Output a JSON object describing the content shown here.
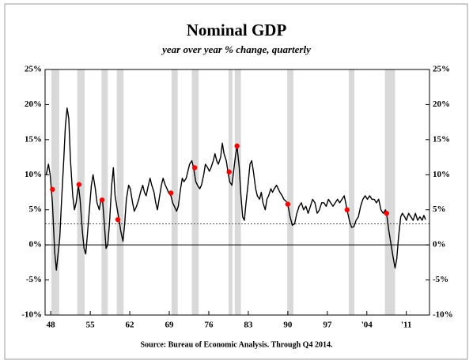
{
  "chart_data": {
    "type": "line",
    "title": "Nominal GDP",
    "subtitle": "year over year % change, quarterly",
    "source": "Source:  Bureau of Economic Analysis. Through Q4 2014.",
    "color": "#000000",
    "x": [
      1947.2,
      1947.6,
      1947.9,
      1948.3,
      1948.7,
      1949.0,
      1949.6,
      1949.9,
      1950.3,
      1950.6,
      1950.9,
      1951.2,
      1951.5,
      1951.9,
      1952.2,
      1952.5,
      1952.9,
      1953.2,
      1953.6,
      1953.9,
      1954.2,
      1954.5,
      1954.9,
      1955.2,
      1955.5,
      1955.9,
      1956.2,
      1956.6,
      1956.9,
      1957.2,
      1957.5,
      1957.8,
      1958.1,
      1958.4,
      1958.8,
      1959.1,
      1959.4,
      1959.8,
      1960.1,
      1960.4,
      1960.8,
      1961.1,
      1961.4,
      1961.8,
      1962.1,
      1962.5,
      1962.8,
      1963.2,
      1963.6,
      1963.9,
      1964.3,
      1964.6,
      1964.9,
      1965.3,
      1965.6,
      1965.9,
      1966.3,
      1966.6,
      1966.9,
      1967.2,
      1967.6,
      1967.9,
      1968.3,
      1968.6,
      1968.9,
      1969.3,
      1969.6,
      1969.9,
      1970.3,
      1970.6,
      1971.0,
      1971.3,
      1971.6,
      1972.0,
      1972.3,
      1972.6,
      1973.0,
      1973.3,
      1973.7,
      1974.0,
      1974.4,
      1974.7,
      1975.1,
      1975.4,
      1975.8,
      1976.1,
      1976.4,
      1976.8,
      1977.1,
      1977.4,
      1977.7,
      1978.1,
      1978.4,
      1978.7,
      1979.1,
      1979.4,
      1979.7,
      1980.1,
      1980.4,
      1980.7,
      1981.0,
      1981.4,
      1981.7,
      1982.0,
      1982.3,
      1982.6,
      1983.0,
      1983.3,
      1983.6,
      1983.9,
      1984.3,
      1984.6,
      1985.0,
      1985.3,
      1985.6,
      1986.0,
      1986.3,
      1986.6,
      1987.0,
      1987.3,
      1987.6,
      1988.0,
      1988.3,
      1988.6,
      1989.0,
      1989.3,
      1989.7,
      1990.0,
      1990.4,
      1990.8,
      1991.2,
      1991.6,
      1992.0,
      1992.4,
      1992.8,
      1993.2,
      1993.6,
      1994.0,
      1994.4,
      1994.8,
      1995.2,
      1995.6,
      1996.0,
      1996.4,
      1996.8,
      1997.2,
      1997.6,
      1998.0,
      1998.4,
      1998.8,
      1999.2,
      1999.6,
      2000.0,
      2000.5,
      2000.9,
      2001.3,
      2001.7,
      2002.1,
      2002.5,
      2002.9,
      2003.3,
      2003.7,
      2004.1,
      2004.5,
      2004.9,
      2005.3,
      2005.7,
      2006.1,
      2006.5,
      2006.9,
      2007.3,
      2007.5,
      2007.9,
      2008.3,
      2008.6,
      2009.0,
      2009.3,
      2009.6,
      2010.0,
      2010.3,
      2010.7,
      2011.0,
      2011.4,
      2011.8,
      2012.2,
      2012.6,
      2013.0,
      2013.4,
      2013.8,
      2014.1,
      2014.4
    ],
    "values": [
      10,
      11.5,
      10,
      6,
      -1,
      -3.6,
      1,
      6,
      12,
      17,
      19.5,
      18,
      12,
      7,
      5,
      6,
      8.5,
      6.5,
      2,
      -0.5,
      -1.3,
      1.5,
      5.5,
      8.5,
      10,
      8,
      6,
      5,
      6.5,
      6.2,
      3,
      -0.5,
      0,
      3,
      8.5,
      11,
      7,
      5,
      3.6,
      2,
      0.5,
      3,
      6.5,
      8.5,
      8,
      6,
      4.8,
      5.5,
      6.5,
      7.5,
      8.5,
      7.5,
      7,
      8.5,
      9.5,
      8.5,
      7.5,
      6,
      5,
      6.5,
      8.5,
      9.5,
      8.5,
      8,
      7.4,
      7,
      6,
      5.5,
      4.8,
      5.5,
      8,
      9.5,
      9,
      9.5,
      10.5,
      11.5,
      12,
      11,
      9,
      8.5,
      8,
      8.5,
      10,
      11.5,
      11,
      10.5,
      11,
      12,
      13,
      12,
      11.5,
      12.5,
      14.5,
      13,
      12,
      10.4,
      9,
      8.5,
      10.5,
      12.5,
      14.1,
      11,
      7,
      4,
      3.5,
      6,
      9,
      11.5,
      12,
      10.5,
      8,
      7,
      6.5,
      7.5,
      6,
      5,
      6.5,
      7,
      8,
      7.5,
      8,
      8.5,
      8,
      7.5,
      7,
      6.5,
      6.2,
      5.8,
      4,
      2.8,
      3,
      4.5,
      5.5,
      6,
      5,
      5.5,
      4.5,
      5.5,
      6.5,
      6,
      4.5,
      5,
      6,
      6,
      5.5,
      6.5,
      6,
      5.5,
      6,
      6.5,
      6,
      6.5,
      7,
      5,
      3.5,
      2.5,
      2.6,
      3.5,
      4,
      5.5,
      6.5,
      7,
      6.5,
      7,
      6.5,
      6.5,
      6,
      6.5,
      5,
      4.5,
      5,
      4.5,
      2,
      0,
      -1.5,
      -3.3,
      -2,
      1,
      4,
      4.5,
      4,
      3.5,
      4.5,
      4,
      3.5,
      4.5,
      3.5,
      4,
      3.5,
      4.2,
      3.6
    ],
    "markers": {
      "color": "#ff0000",
      "x": [
        1948.3,
        1953.0,
        1957.1,
        1959.9,
        1969.3,
        1973.5,
        1979.6,
        1981.0,
        1990.0,
        2000.5,
        2007.5
      ],
      "values": [
        7.9,
        8.6,
        6.4,
        3.6,
        7.4,
        11,
        10.4,
        14.1,
        5.8,
        5,
        4.5
      ]
    },
    "recessions": [
      [
        1948.1,
        1949.5
      ],
      [
        1952.7,
        1954.0
      ],
      [
        1957.0,
        1958.1
      ],
      [
        1959.7,
        1960.9
      ],
      [
        1969.4,
        1970.5
      ],
      [
        1973.0,
        1974.2
      ],
      [
        1979.5,
        1980.2
      ],
      [
        1980.6,
        1981.7
      ],
      [
        1989.9,
        1991.0
      ],
      [
        2000.8,
        2001.8
      ],
      [
        2007.2,
        2009.0
      ]
    ],
    "recession_color": "#d9d9d9",
    "reference_line": 3,
    "xlim": [
      1947,
      2015.1
    ],
    "xticks": [
      {
        "value": 1948,
        "label": "48"
      },
      {
        "value": 1955,
        "label": "55"
      },
      {
        "value": 1962,
        "label": "62"
      },
      {
        "value": 1969,
        "label": "69"
      },
      {
        "value": 1976,
        "label": "76"
      },
      {
        "value": 1983,
        "label": "83"
      },
      {
        "value": 1990,
        "label": "90"
      },
      {
        "value": 1997,
        "label": "97"
      },
      {
        "value": 2004,
        "label": "'04"
      },
      {
        "value": 2011,
        "label": "'11"
      }
    ],
    "ylim": [
      -10,
      25
    ],
    "yticks": [
      {
        "value": -10,
        "label": "-10%"
      },
      {
        "value": -5,
        "label": "-5%"
      },
      {
        "value": 0,
        "label": "0%"
      },
      {
        "value": 5,
        "label": "5%"
      },
      {
        "value": 10,
        "label": "10%"
      },
      {
        "value": 15,
        "label": "15%"
      },
      {
        "value": 20,
        "label": "20%"
      },
      {
        "value": 25,
        "label": "25%"
      }
    ],
    "y2lim": [
      -10,
      25
    ],
    "y2ticks": [
      {
        "value": -10,
        "label": "-10%"
      },
      {
        "value": -5,
        "label": "-5%"
      },
      {
        "value": 0,
        "label": "0%"
      },
      {
        "value": 5,
        "label": "5%"
      },
      {
        "value": 10,
        "label": "10%"
      },
      {
        "value": 15,
        "label": "15%"
      },
      {
        "value": 20,
        "label": "20%"
      },
      {
        "value": 25,
        "label": "25%"
      }
    ]
  }
}
